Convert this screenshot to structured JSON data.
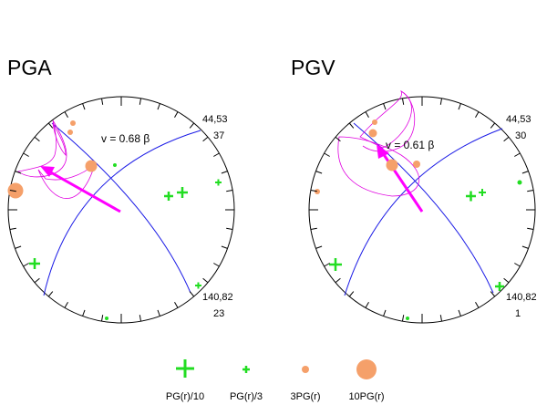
{
  "panels": [
    {
      "title": "PGA",
      "velocity_label": "v = 0.68 β",
      "plane_top_label": "44,53",
      "plane_top_value": "37",
      "plane_bottom_label": "140,82",
      "plane_bottom_value": "23"
    },
    {
      "title": "PGV",
      "velocity_label": "v = 0.61 β",
      "plane_top_label": "44,53",
      "plane_top_value": "30",
      "plane_bottom_label": "140,82",
      "plane_bottom_value": "1"
    }
  ],
  "legend": [
    {
      "symbol": "large-plus",
      "label": "PG(r)/10"
    },
    {
      "symbol": "small-plus",
      "label": "PG(r)/3"
    },
    {
      "symbol": "small-dot",
      "label": "3PG(r)"
    },
    {
      "symbol": "large-dot",
      "label": "10PG(r)"
    }
  ],
  "colors": {
    "plane": "#1a1ae6",
    "arrow": "#ff00ff",
    "contour": "#e000e0",
    "plus": "#22dd22",
    "dot": "#f5a06a",
    "circle": "#000000"
  }
}
